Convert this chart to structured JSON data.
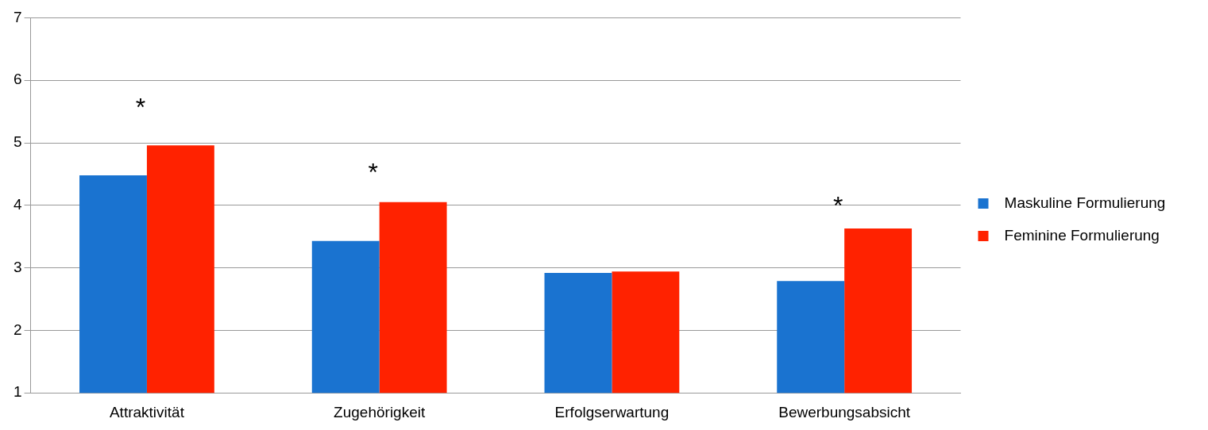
{
  "chart_data": {
    "type": "bar",
    "categories": [
      "Attraktivität",
      "Zugehörigkeit",
      "Erfolgserwartung",
      "Bewerbungsabsicht"
    ],
    "series": [
      {
        "name": "Maskuline Formulierung",
        "color": "#1a73d0",
        "values": [
          4.48,
          3.43,
          2.92,
          2.79
        ]
      },
      {
        "name": "Feminine Formulierung",
        "color": "#ff2200",
        "values": [
          4.96,
          4.05,
          2.94,
          3.63
        ]
      }
    ],
    "ylim": [
      1,
      7
    ],
    "yticks": [
      1,
      2,
      3,
      4,
      5,
      6,
      7
    ],
    "grid": "y",
    "legend": "right",
    "annotations": [
      "*",
      "*",
      "*"
    ]
  }
}
